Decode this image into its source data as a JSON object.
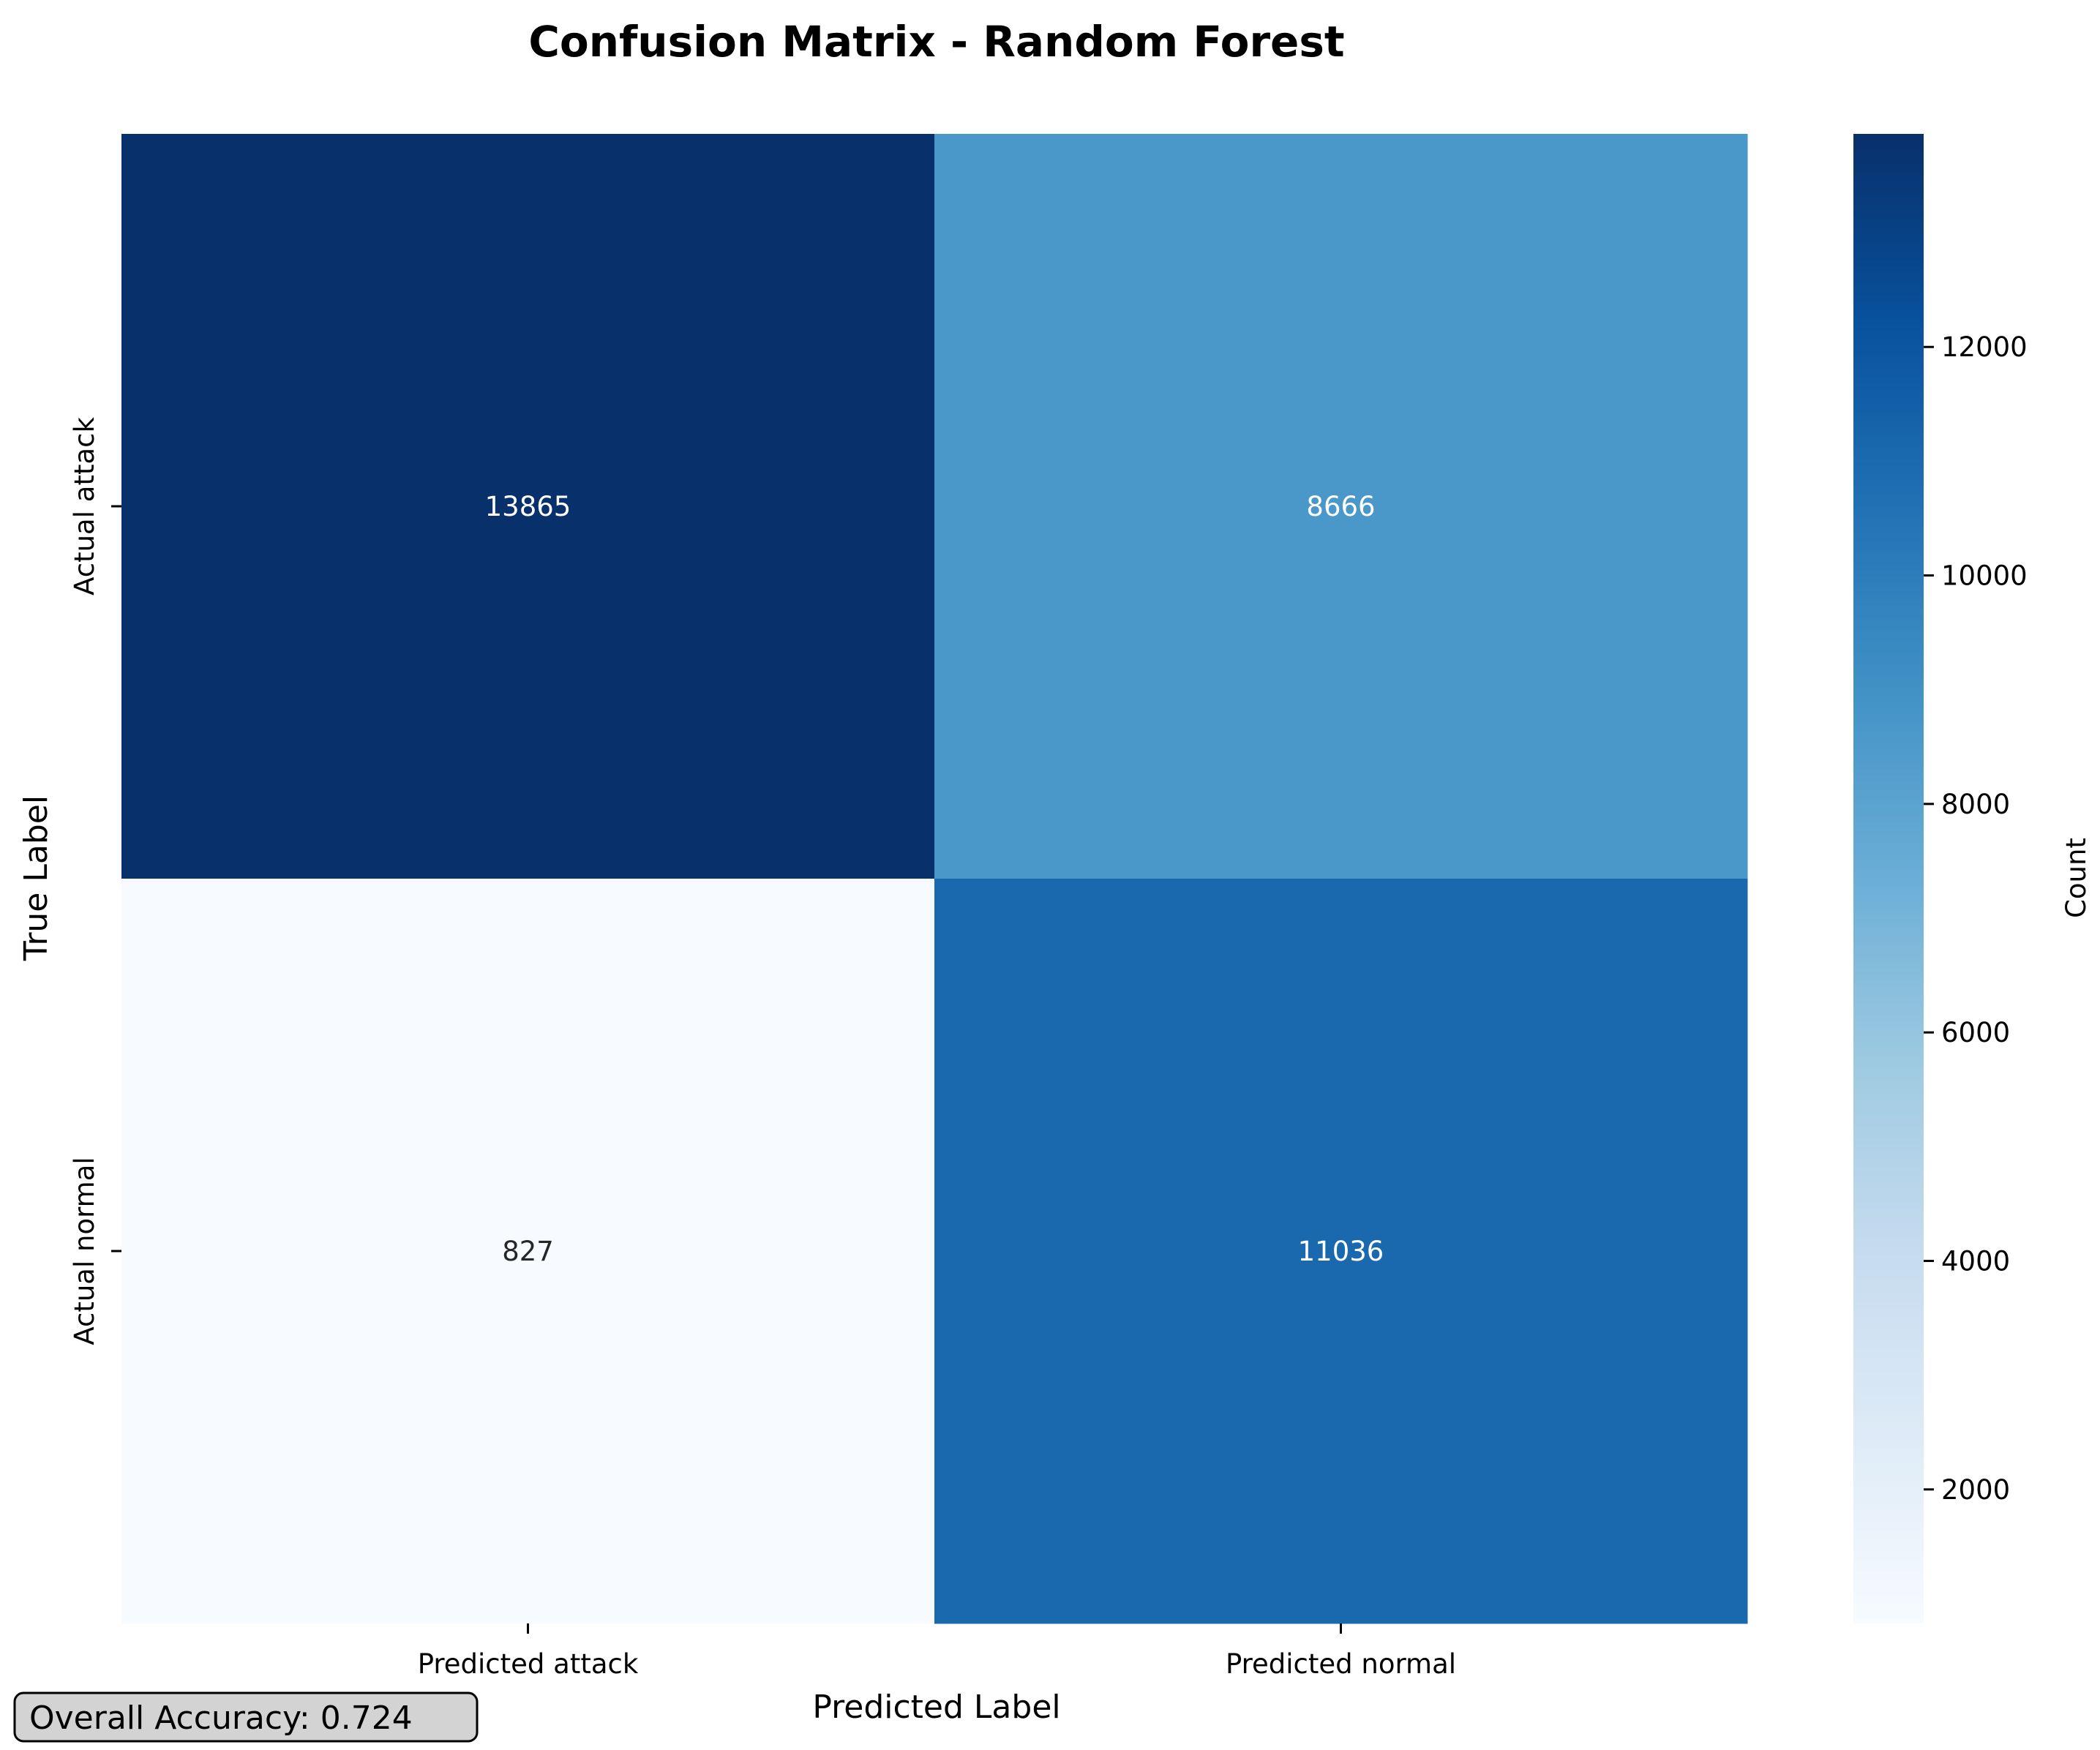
{
  "chart_data": {
    "type": "heatmap",
    "title": "Confusion Matrix - Random Forest",
    "xlabel": "Predicted Label",
    "ylabel": "True Label",
    "x_categories": [
      "Predicted attack",
      "Predicted normal"
    ],
    "y_categories": [
      "Actual attack",
      "Actual normal"
    ],
    "values": [
      [
        13865,
        8666
      ],
      [
        827,
        11036
      ]
    ],
    "colormap": "Blues",
    "colorbar": {
      "label": "Count",
      "range": [
        827,
        13865
      ],
      "ticks": [
        2000,
        4000,
        6000,
        8000,
        10000,
        12000
      ]
    },
    "grid": false
  },
  "annotation": {
    "text": "Overall Accuracy: 0.724"
  },
  "colors": {
    "light_text": "#ffffff",
    "dark_text": "#262626",
    "annotation_bg": "#d3d3d3",
    "annotation_border": "#000000"
  }
}
